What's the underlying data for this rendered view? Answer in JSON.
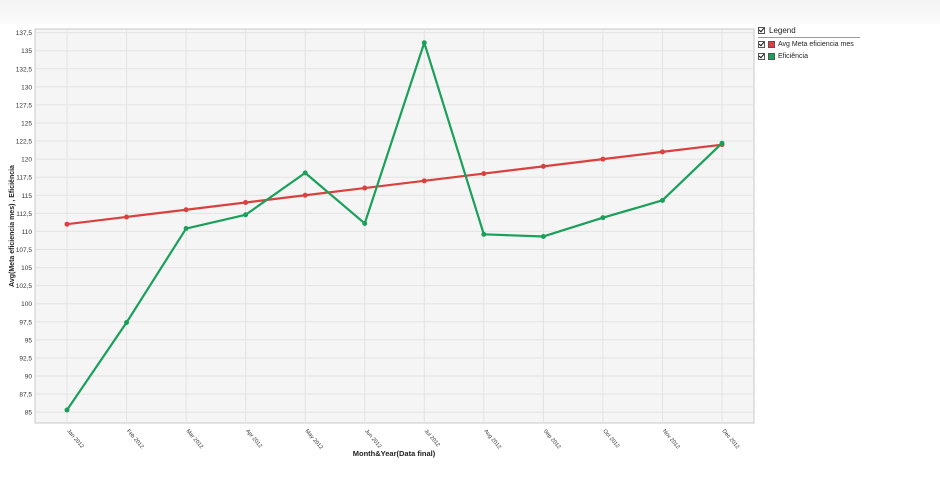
{
  "chart_data": {
    "type": "line",
    "xlabel": "Month&Year(Data final)",
    "ylabel": "Avg(Meta eficiencia mes) , Eficiência",
    "categories": [
      "Jan 2012",
      "Feb 2012",
      "Mar 2012",
      "Apr 2012",
      "May 2012",
      "Jun 2012",
      "Jul 2012",
      "Aug 2012",
      "Sep 2012",
      "Oct 2012",
      "Nov 2012",
      "Dec 2012"
    ],
    "ylim": [
      83.5,
      138
    ],
    "yticks": [
      85,
      87.5,
      90,
      92.5,
      95,
      97.5,
      100,
      102.5,
      105,
      107.5,
      110,
      112.5,
      115,
      117.5,
      120,
      122.5,
      125,
      127.5,
      130,
      132.5,
      135,
      137.5
    ],
    "grid": true,
    "legend_position": "right",
    "series": [
      {
        "name": "Avg Meta eficiencia mes",
        "color": "#d9413f",
        "values": [
          111,
          112,
          113,
          114,
          115,
          116,
          117,
          118,
          119,
          120,
          121,
          122
        ]
      },
      {
        "name": "Eficiência",
        "color": "#1aa05a",
        "values": [
          85.3,
          97.4,
          110.4,
          112.3,
          118.1,
          111.1,
          136.1,
          109.6,
          109.3,
          111.9,
          114.3,
          122.2
        ]
      }
    ]
  },
  "legend": {
    "title": "Legend",
    "items": [
      {
        "label": "Avg Meta eficiencia mes",
        "color": "#d9413f"
      },
      {
        "label": "Eficiência",
        "color": "#1aa05a"
      }
    ]
  }
}
